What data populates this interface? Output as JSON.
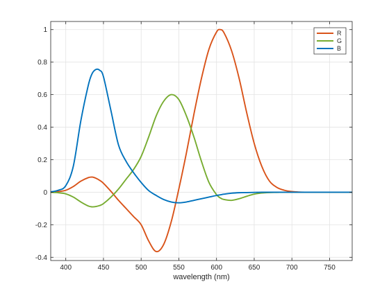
{
  "chart_data": {
    "type": "line",
    "title": "",
    "xlabel": "wavelength (nm)",
    "ylabel": "",
    "xlim": [
      380,
      780
    ],
    "ylim": [
      -0.42,
      1.05
    ],
    "grid": true,
    "legend_position": "top-right",
    "xticks": [
      400,
      450,
      500,
      550,
      600,
      650,
      700,
      750
    ],
    "yticks": [
      -0.4,
      -0.2,
      0,
      0.2,
      0.4,
      0.6,
      0.8,
      1
    ],
    "xtick_labels": [
      "400",
      "450",
      "500",
      "550",
      "600",
      "650",
      "700",
      "750"
    ],
    "ytick_labels": [
      "-0.4",
      "-0.2",
      "0",
      "0.2",
      "0.4",
      "0.6",
      "0.8",
      "1"
    ],
    "x": [
      380,
      390,
      400,
      410,
      420,
      430,
      435,
      440,
      445,
      450,
      460,
      470,
      480,
      490,
      500,
      510,
      520,
      530,
      540,
      550,
      560,
      570,
      580,
      590,
      600,
      605,
      610,
      620,
      630,
      640,
      650,
      660,
      670,
      680,
      690,
      700,
      710,
      720,
      730,
      740,
      750,
      760,
      770,
      780
    ],
    "series": [
      {
        "name": "R",
        "color": "#d95319",
        "values": [
          0.001,
          0.004,
          0.012,
          0.035,
          0.068,
          0.09,
          0.093,
          0.086,
          0.073,
          0.055,
          0.005,
          -0.05,
          -0.1,
          -0.15,
          -0.2,
          -0.3,
          -0.365,
          -0.32,
          -0.18,
          0.02,
          0.24,
          0.48,
          0.7,
          0.88,
          0.985,
          1.0,
          0.98,
          0.87,
          0.7,
          0.49,
          0.3,
          0.16,
          0.07,
          0.03,
          0.012,
          0.004,
          0.001,
          0.0,
          0.0,
          0.0,
          0.0,
          0.0,
          0.0,
          0.0
        ]
      },
      {
        "name": "G",
        "color": "#77ac30",
        "values": [
          -0.001,
          -0.003,
          -0.01,
          -0.03,
          -0.06,
          -0.085,
          -0.09,
          -0.088,
          -0.082,
          -0.07,
          -0.03,
          0.02,
          0.08,
          0.14,
          0.22,
          0.34,
          0.47,
          0.56,
          0.6,
          0.57,
          0.47,
          0.34,
          0.19,
          0.06,
          -0.015,
          -0.035,
          -0.045,
          -0.05,
          -0.04,
          -0.025,
          -0.012,
          -0.005,
          -0.002,
          -0.001,
          0.0,
          0.0,
          0.0,
          0.0,
          0.0,
          0.0,
          0.0,
          0.0,
          0.0,
          0.0
        ]
      },
      {
        "name": "B",
        "color": "#0072bd",
        "values": [
          0.002,
          0.012,
          0.04,
          0.16,
          0.44,
          0.66,
          0.73,
          0.755,
          0.75,
          0.71,
          0.5,
          0.29,
          0.19,
          0.12,
          0.06,
          0.01,
          -0.02,
          -0.045,
          -0.06,
          -0.065,
          -0.06,
          -0.05,
          -0.04,
          -0.03,
          -0.02,
          -0.016,
          -0.012,
          -0.006,
          -0.003,
          -0.002,
          -0.001,
          0.0,
          0.0,
          0.0,
          0.0,
          0.0,
          0.0,
          0.0,
          0.0,
          0.0,
          0.0,
          0.0,
          0.0,
          0.0
        ]
      }
    ]
  }
}
